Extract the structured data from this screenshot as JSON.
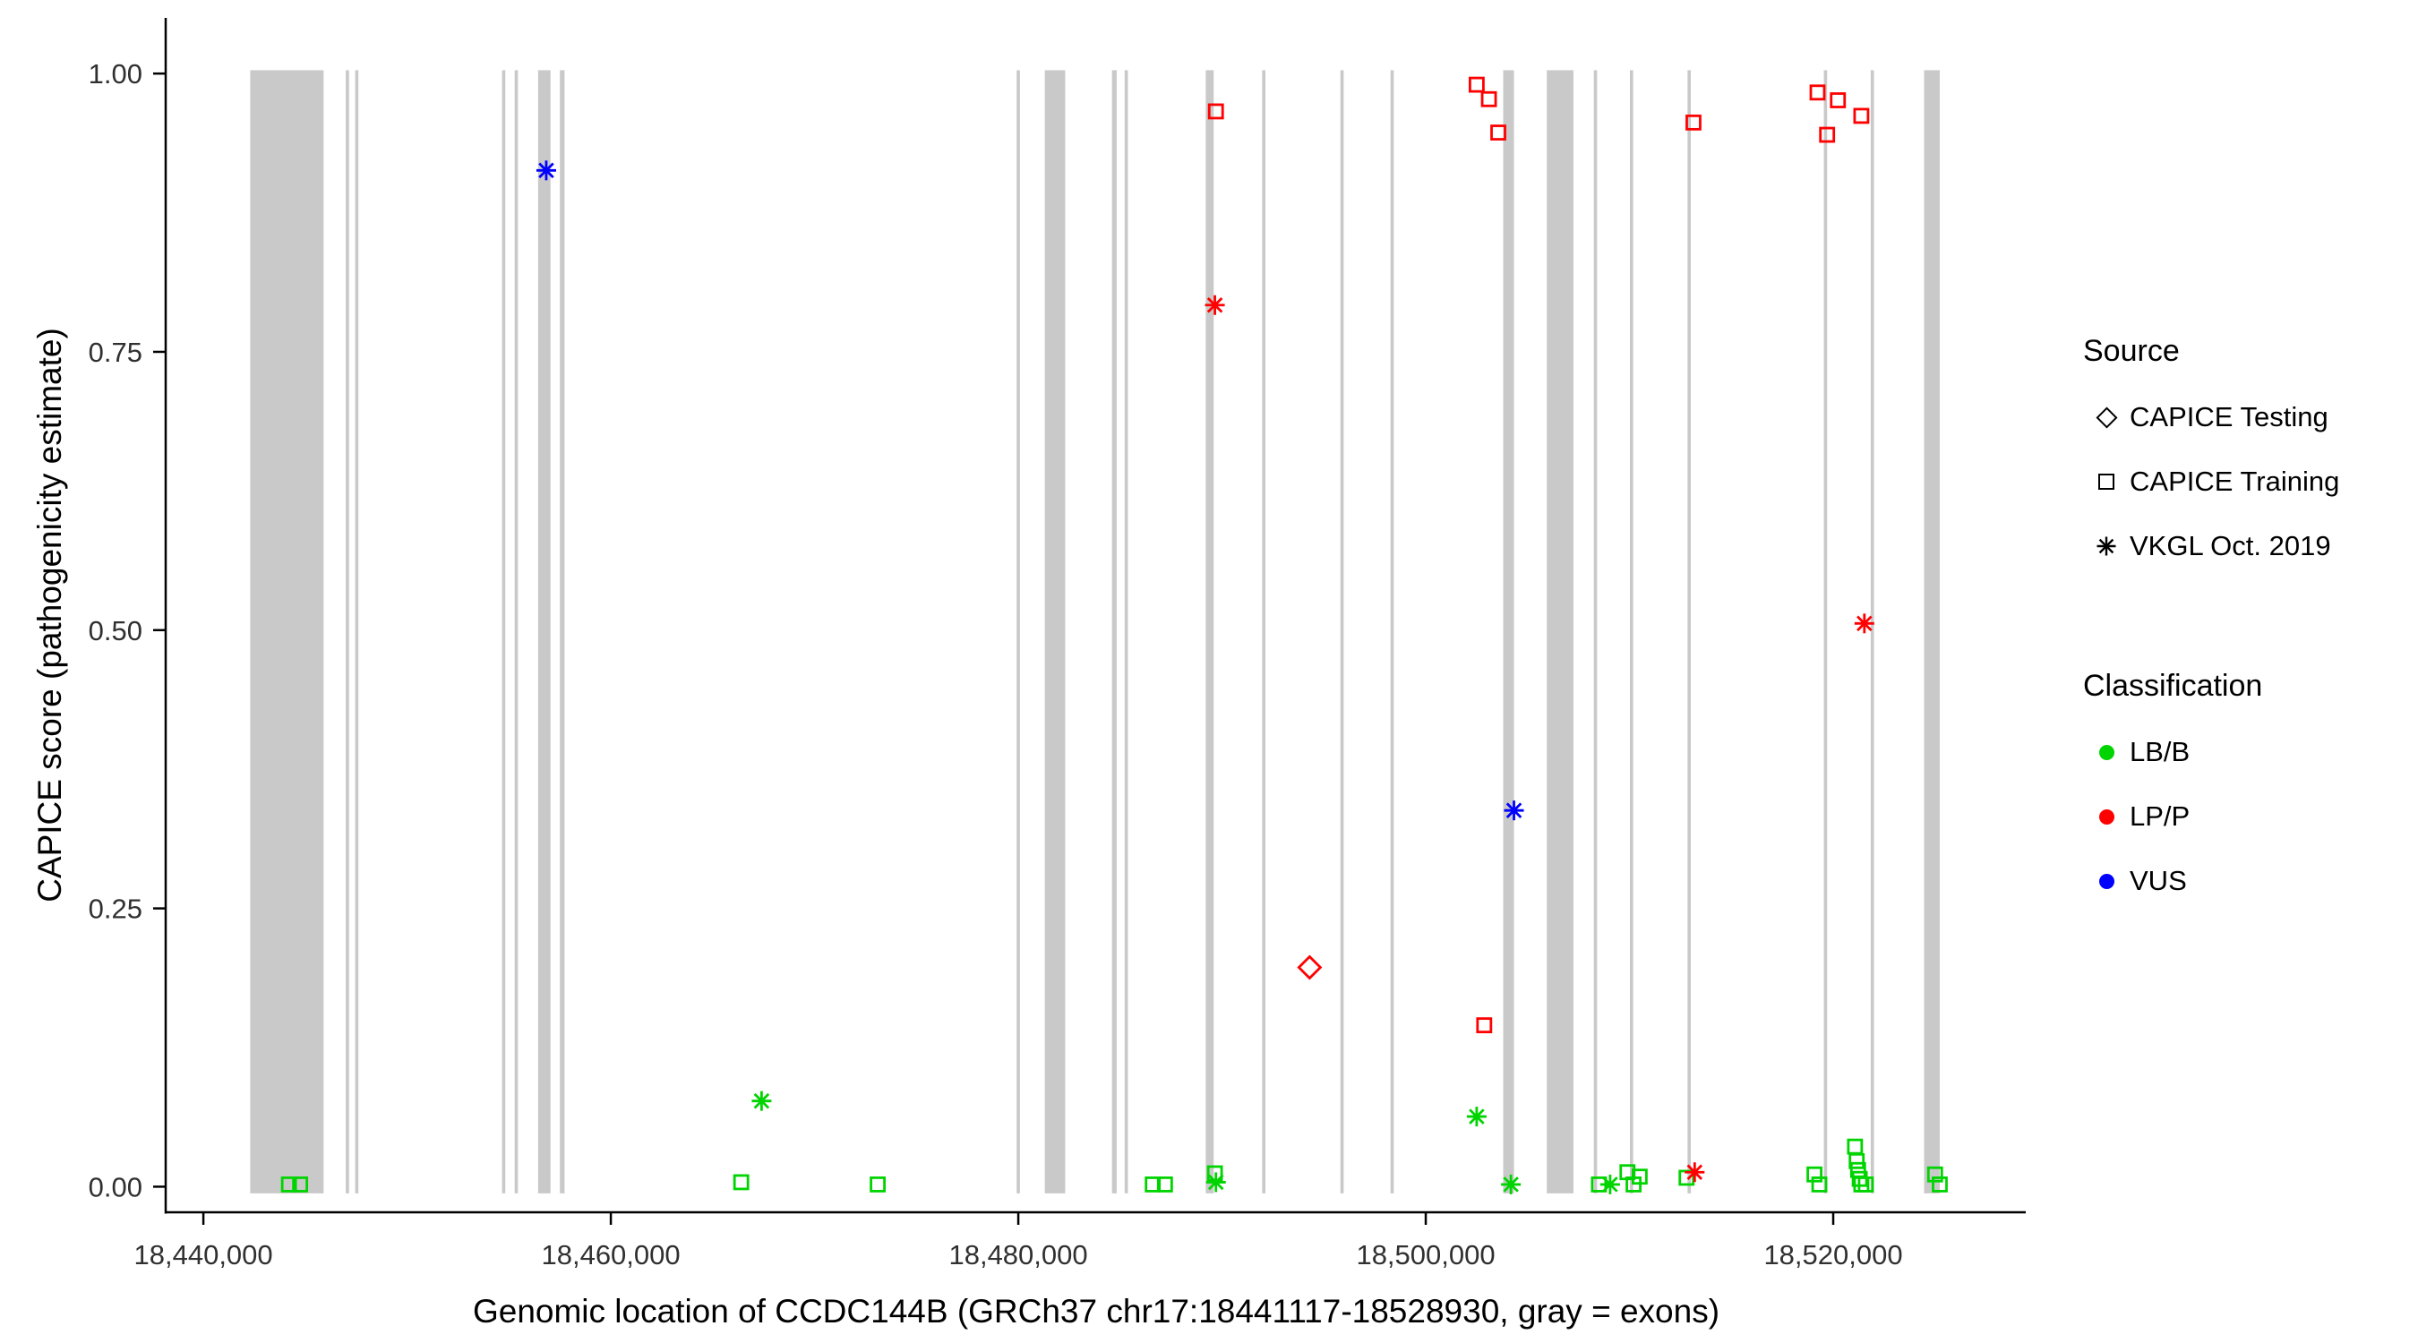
{
  "chart_data": {
    "type": "scatter",
    "title": "",
    "xlabel": "Genomic location of CCDC144B (GRCh37 chr17:18441117-18528930, gray = exons)",
    "ylabel": "CAPICE score (pathogenicity estimate)",
    "xlim": [
      18438150,
      18529450
    ],
    "ylim": [
      -0.023,
      1.05
    ],
    "grid": "off",
    "x_ticks": [
      {
        "value": 18440000,
        "label": "18,440,000"
      },
      {
        "value": 18460000,
        "label": "18,460,000"
      },
      {
        "value": 18480000,
        "label": "18,480,000"
      },
      {
        "value": 18500000,
        "label": "18,500,000"
      },
      {
        "value": 18520000,
        "label": "18,520,000"
      }
    ],
    "y_ticks": [
      {
        "value": 0.0,
        "label": "0.00"
      },
      {
        "value": 0.25,
        "label": "0.25"
      },
      {
        "value": 0.5,
        "label": "0.50"
      },
      {
        "value": 0.75,
        "label": "0.75"
      },
      {
        "value": 1.0,
        "label": "1.00"
      }
    ],
    "exon_note": "gray = exons",
    "exon_y": [
      -0.006,
      1.003
    ],
    "exons": [
      [
        18442300,
        18445900
      ],
      [
        18446990,
        18447150
      ],
      [
        18447450,
        18447610
      ],
      [
        18454660,
        18454820
      ],
      [
        18455280,
        18455440
      ],
      [
        18456430,
        18457040
      ],
      [
        18457500,
        18457730
      ],
      [
        18479920,
        18480080
      ],
      [
        18481300,
        18482300
      ],
      [
        18484600,
        18484830
      ],
      [
        18485220,
        18485380
      ],
      [
        18489200,
        18489590
      ],
      [
        18491970,
        18492130
      ],
      [
        18495810,
        18495970
      ],
      [
        18498270,
        18498430
      ],
      [
        18503800,
        18504330
      ],
      [
        18505940,
        18507250
      ],
      [
        18508250,
        18508410
      ],
      [
        18510020,
        18510180
      ],
      [
        18512850,
        18513010
      ],
      [
        18519540,
        18519700
      ],
      [
        18521840,
        18522000
      ],
      [
        18524460,
        18525230
      ]
    ],
    "colors": {
      "exon": "#c9c9c9",
      "axis": "#000000",
      "tick_text": "#303030",
      "classification": {
        "LB/B": "#00d400",
        "LP/P": "#ff0000",
        "VUS": "#0000ff"
      }
    },
    "legend": {
      "source": {
        "title": "Source",
        "items": [
          {
            "label": "CAPICE Testing",
            "shape": "diamond"
          },
          {
            "label": "CAPICE Training",
            "shape": "square"
          },
          {
            "label": "VKGL Oct. 2019",
            "shape": "asterisk"
          }
        ]
      },
      "classification": {
        "title": "Classification",
        "items": [
          {
            "label": "LB/B"
          },
          {
            "label": "LP/P"
          },
          {
            "label": "VUS"
          }
        ]
      }
    },
    "points": [
      {
        "x": 18444200,
        "y": 0.002,
        "source": "CAPICE Training",
        "cls": "LB/B"
      },
      {
        "x": 18444750,
        "y": 0.002,
        "source": "CAPICE Training",
        "cls": "LB/B"
      },
      {
        "x": 18466400,
        "y": 0.004,
        "source": "CAPICE Training",
        "cls": "LB/B"
      },
      {
        "x": 18473100,
        "y": 0.002,
        "source": "CAPICE Training",
        "cls": "LB/B"
      },
      {
        "x": 18486600,
        "y": 0.002,
        "source": "CAPICE Training",
        "cls": "LB/B"
      },
      {
        "x": 18487200,
        "y": 0.002,
        "source": "CAPICE Training",
        "cls": "LB/B"
      },
      {
        "x": 18489650,
        "y": 0.012,
        "source": "CAPICE Training",
        "cls": "LB/B"
      },
      {
        "x": 18508500,
        "y": 0.002,
        "source": "CAPICE Training",
        "cls": "LB/B"
      },
      {
        "x": 18509900,
        "y": 0.013,
        "source": "CAPICE Training",
        "cls": "LB/B"
      },
      {
        "x": 18510200,
        "y": 0.002,
        "source": "CAPICE Training",
        "cls": "LB/B"
      },
      {
        "x": 18510500,
        "y": 0.009,
        "source": "CAPICE Training",
        "cls": "LB/B"
      },
      {
        "x": 18512800,
        "y": 0.008,
        "source": "CAPICE Training",
        "cls": "LB/B"
      },
      {
        "x": 18519080,
        "y": 0.011,
        "source": "CAPICE Training",
        "cls": "LB/B"
      },
      {
        "x": 18519320,
        "y": 0.002,
        "source": "CAPICE Training",
        "cls": "LB/B"
      },
      {
        "x": 18521070,
        "y": 0.036,
        "source": "CAPICE Training",
        "cls": "LB/B"
      },
      {
        "x": 18521150,
        "y": 0.023,
        "source": "CAPICE Training",
        "cls": "LB/B"
      },
      {
        "x": 18521220,
        "y": 0.015,
        "source": "CAPICE Training",
        "cls": "LB/B"
      },
      {
        "x": 18521300,
        "y": 0.007,
        "source": "CAPICE Training",
        "cls": "LB/B"
      },
      {
        "x": 18521380,
        "y": 0.002,
        "source": "CAPICE Training",
        "cls": "LB/B"
      },
      {
        "x": 18521600,
        "y": 0.002,
        "source": "CAPICE Training",
        "cls": "LB/B"
      },
      {
        "x": 18525000,
        "y": 0.011,
        "source": "CAPICE Training",
        "cls": "LB/B"
      },
      {
        "x": 18525230,
        "y": 0.002,
        "source": "CAPICE Training",
        "cls": "LB/B"
      },
      {
        "x": 18467400,
        "y": 0.077,
        "source": "VKGL Oct. 2019",
        "cls": "LB/B"
      },
      {
        "x": 18489700,
        "y": 0.004,
        "source": "VKGL Oct. 2019",
        "cls": "LB/B"
      },
      {
        "x": 18502500,
        "y": 0.063,
        "source": "VKGL Oct. 2019",
        "cls": "LB/B"
      },
      {
        "x": 18504180,
        "y": 0.002,
        "source": "VKGL Oct. 2019",
        "cls": "LB/B"
      },
      {
        "x": 18509050,
        "y": 0.002,
        "source": "VKGL Oct. 2019",
        "cls": "LB/B"
      },
      {
        "x": 18489700,
        "y": 0.966,
        "source": "CAPICE Training",
        "cls": "LP/P"
      },
      {
        "x": 18502500,
        "y": 0.99,
        "source": "CAPICE Training",
        "cls": "LP/P"
      },
      {
        "x": 18503100,
        "y": 0.977,
        "source": "CAPICE Training",
        "cls": "LP/P"
      },
      {
        "x": 18503560,
        "y": 0.947,
        "source": "CAPICE Training",
        "cls": "LP/P"
      },
      {
        "x": 18502870,
        "y": 0.145,
        "source": "CAPICE Training",
        "cls": "LP/P"
      },
      {
        "x": 18513140,
        "y": 0.956,
        "source": "CAPICE Training",
        "cls": "LP/P"
      },
      {
        "x": 18519230,
        "y": 0.983,
        "source": "CAPICE Training",
        "cls": "LP/P"
      },
      {
        "x": 18519700,
        "y": 0.945,
        "source": "CAPICE Training",
        "cls": "LP/P"
      },
      {
        "x": 18520230,
        "y": 0.976,
        "source": "CAPICE Training",
        "cls": "LP/P"
      },
      {
        "x": 18521380,
        "y": 0.962,
        "source": "CAPICE Training",
        "cls": "LP/P"
      },
      {
        "x": 18494300,
        "y": 0.197,
        "source": "CAPICE Testing",
        "cls": "LP/P"
      },
      {
        "x": 18489650,
        "y": 0.792,
        "source": "VKGL Oct. 2019",
        "cls": "LP/P"
      },
      {
        "x": 18513200,
        "y": 0.013,
        "source": "VKGL Oct. 2019",
        "cls": "LP/P"
      },
      {
        "x": 18521530,
        "y": 0.506,
        "source": "VKGL Oct. 2019",
        "cls": "LP/P"
      },
      {
        "x": 18456830,
        "y": 0.913,
        "source": "VKGL Oct. 2019",
        "cls": "VUS"
      },
      {
        "x": 18504330,
        "y": 0.338,
        "source": "VKGL Oct. 2019",
        "cls": "VUS"
      }
    ]
  }
}
